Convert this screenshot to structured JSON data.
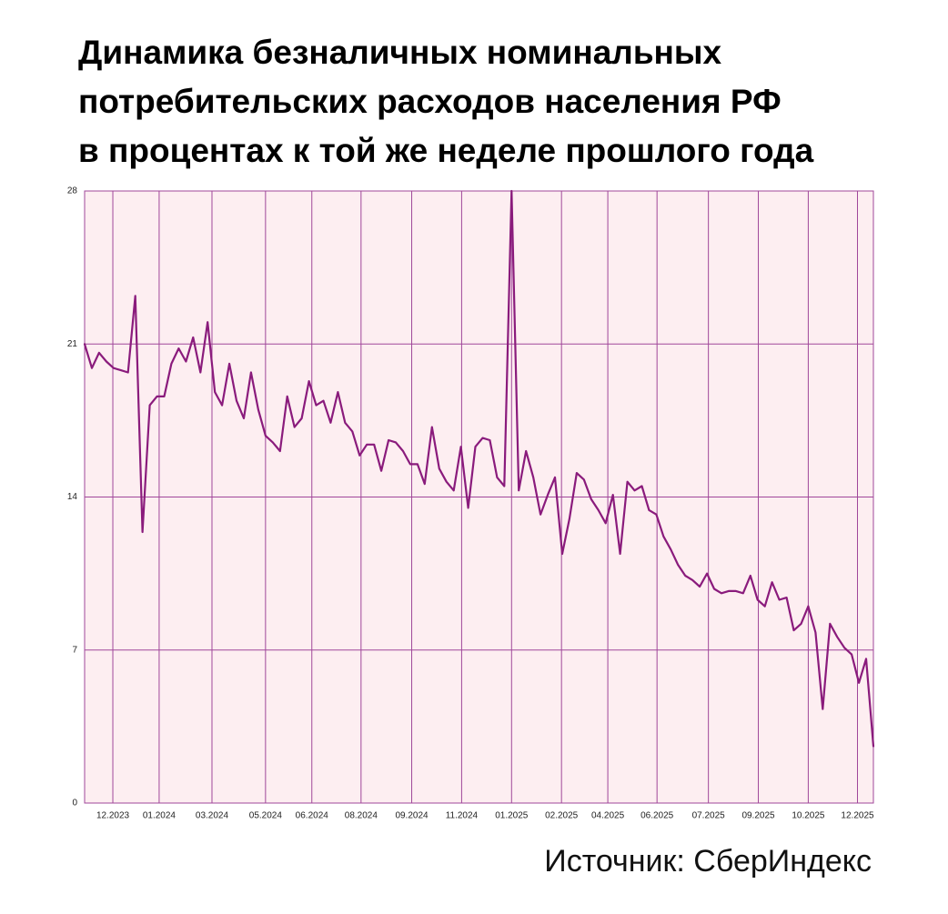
{
  "chart_data": {
    "type": "line",
    "title": [
      "Динамика безналичных номинальных",
      "потребительских расходов населения РФ",
      "в процентах к той же неделе прошлого года"
    ],
    "source": "Источник: СберИндекс",
    "ylim": [
      0,
      28
    ],
    "yticks": [
      0,
      7,
      14,
      21,
      28
    ],
    "xlim": [
      0,
      109
    ],
    "xticks": [
      {
        "value": 3.9,
        "label": "12.2023"
      },
      {
        "value": 10.3,
        "label": "01.2024"
      },
      {
        "value": 17.6,
        "label": "03.2024"
      },
      {
        "value": 25,
        "label": "05.2024"
      },
      {
        "value": 31.4,
        "label": "06.2024"
      },
      {
        "value": 38.2,
        "label": "08.2024"
      },
      {
        "value": 45.2,
        "label": "09.2024"
      },
      {
        "value": 52.1,
        "label": "11.2024"
      },
      {
        "value": 59,
        "label": "01.2025"
      },
      {
        "value": 65.9,
        "label": "02.2025"
      },
      {
        "value": 72.3,
        "label": "04.2025"
      },
      {
        "value": 79.1,
        "label": "06.2025"
      },
      {
        "value": 86.2,
        "label": "07.2025"
      },
      {
        "value": 93.1,
        "label": "09.2025"
      },
      {
        "value": 100,
        "label": "10.2025"
      },
      {
        "value": 106.8,
        "label": "12.2025"
      }
    ],
    "grid": true,
    "background": "#fdeef1",
    "grid_color": "#a0479a",
    "series": [
      {
        "color": "#8a1b7c",
        "values": [
          21.0,
          19.9,
          20.6,
          20.2,
          19.9,
          19.8,
          19.7,
          23.2,
          12.4,
          18.2,
          18.6,
          18.6,
          20.1,
          20.8,
          20.2,
          21.3,
          19.7,
          22.0,
          18.8,
          18.2,
          20.1,
          18.4,
          17.6,
          19.7,
          18.0,
          16.8,
          16.5,
          16.1,
          18.6,
          17.2,
          17.6,
          19.3,
          18.2,
          18.4,
          17.4,
          18.8,
          17.4,
          17.0,
          15.9,
          16.4,
          16.4,
          15.2,
          16.6,
          16.5,
          16.1,
          15.5,
          15.5,
          14.6,
          17.2,
          15.3,
          14.7,
          14.3,
          16.3,
          13.5,
          16.3,
          16.7,
          16.6,
          14.9,
          14.5,
          28,
          14.3,
          16.1,
          14.9,
          13.2,
          14.1,
          14.9,
          11.4,
          13.0,
          15.1,
          14.8,
          13.9,
          13.4,
          12.8,
          14.1,
          11.4,
          14.7,
          14.3,
          14.5,
          13.4,
          13.2,
          12.2,
          11.6,
          10.9,
          10.4,
          10.2,
          9.9,
          10.5,
          9.8,
          9.6,
          9.7,
          9.7,
          9.6,
          10.4,
          9.3,
          9.0,
          10.1,
          9.3,
          9.4,
          7.9,
          8.2,
          9.0,
          7.8,
          4.3,
          8.2,
          7.6,
          7.1,
          6.8,
          5.5,
          6.6,
          2.6
        ]
      }
    ]
  }
}
